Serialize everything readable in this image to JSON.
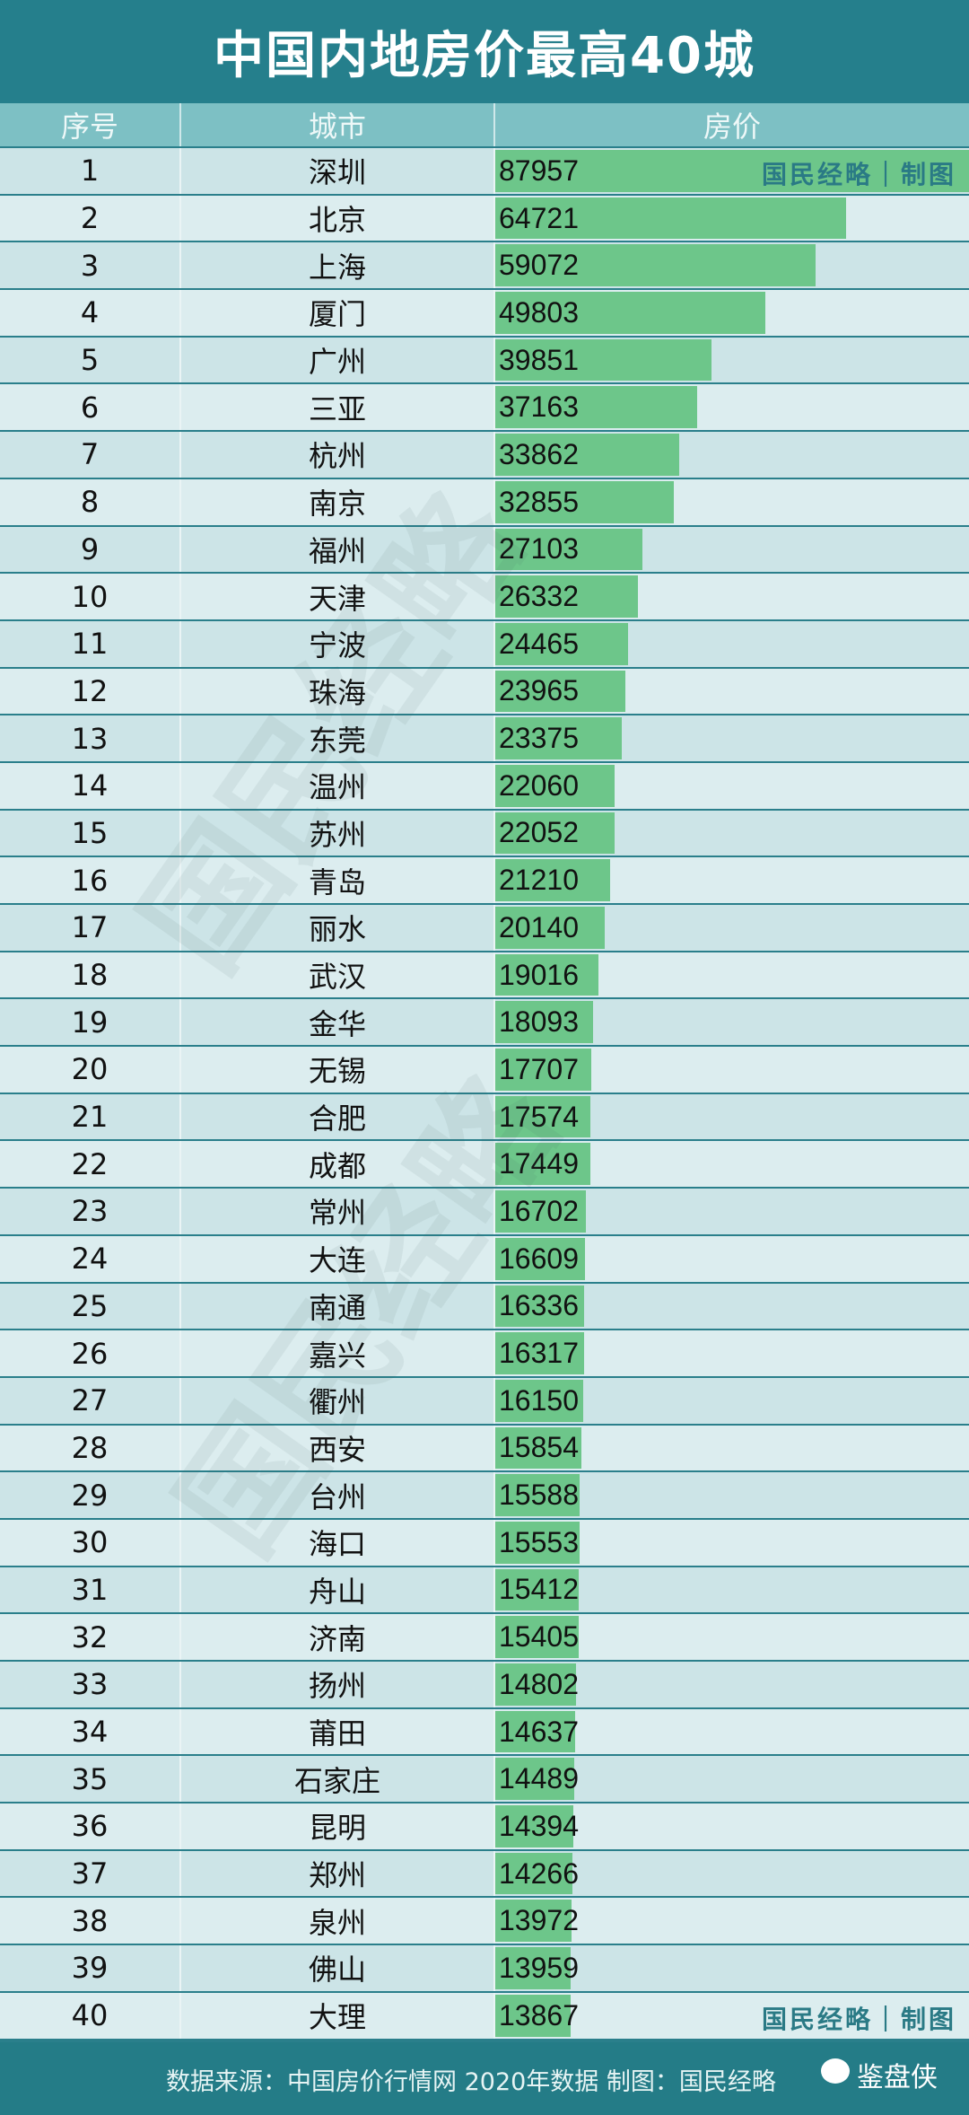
{
  "chart_data": {
    "type": "bar",
    "title": "中国内地房价最高40城",
    "columns": [
      "序号",
      "城市",
      "房价"
    ],
    "categories": [
      "深圳",
      "北京",
      "上海",
      "厦门",
      "广州",
      "三亚",
      "杭州",
      "南京",
      "福州",
      "天津",
      "宁波",
      "珠海",
      "东莞",
      "温州",
      "苏州",
      "青岛",
      "丽水",
      "武汉",
      "金华",
      "无锡",
      "合肥",
      "成都",
      "常州",
      "大连",
      "南通",
      "嘉兴",
      "衢州",
      "西安",
      "台州",
      "海口",
      "舟山",
      "济南",
      "扬州",
      "莆田",
      "石家庄",
      "昆明",
      "郑州",
      "泉州",
      "佛山",
      "大理"
    ],
    "values": [
      87957,
      64721,
      59072,
      49803,
      39851,
      37163,
      33862,
      32855,
      27103,
      26332,
      24465,
      23965,
      23375,
      22060,
      22052,
      21210,
      20140,
      19016,
      18093,
      17707,
      17574,
      17449,
      16702,
      16609,
      16336,
      16317,
      16150,
      15854,
      15588,
      15553,
      15412,
      15405,
      14802,
      14637,
      14489,
      14394,
      14266,
      13972,
      13959,
      13867
    ],
    "orientation": "horizontal",
    "bar_color": "#6dc68a"
  },
  "credit": "国民经略｜制图",
  "watermark": "国民经略",
  "footer": {
    "source": "数据来源：中国房价行情网 2020年数据 制图：国民经略",
    "brand": "鉴盘侠",
    "brand_icon": "wechat-icon"
  },
  "colors": {
    "title_bg": "#257f8c",
    "header_bg": "#7dc0c4",
    "bar": "#6dc68a"
  }
}
